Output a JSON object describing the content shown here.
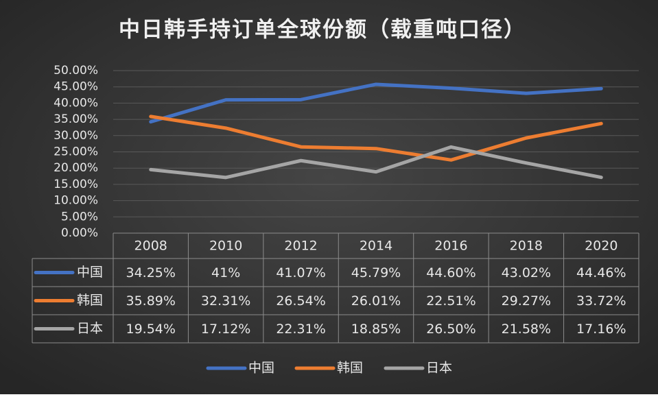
{
  "chart_data": {
    "type": "line",
    "title": "中日韩手持订单全球份额（载重吨口径）",
    "categories": [
      "2008",
      "2010",
      "2012",
      "2014",
      "2016",
      "2018",
      "2020"
    ],
    "ylim": [
      0,
      50
    ],
    "yticks": [
      {
        "value": 0,
        "label": "0.00%"
      },
      {
        "value": 5,
        "label": "5.00%"
      },
      {
        "value": 10,
        "label": "10.00%"
      },
      {
        "value": 15,
        "label": "15.00%"
      },
      {
        "value": 20,
        "label": "20.00%"
      },
      {
        "value": 25,
        "label": "25.00%"
      },
      {
        "value": 30,
        "label": "30.00%"
      },
      {
        "value": 35,
        "label": "35.00%"
      },
      {
        "value": 40,
        "label": "40.00%"
      },
      {
        "value": 45,
        "label": "45.00%"
      },
      {
        "value": 50,
        "label": "50.00%"
      }
    ],
    "grid": true,
    "legend": "bottom",
    "series": [
      {
        "name": "中国",
        "color": "#4472c4",
        "values": [
          34.25,
          41,
          41.07,
          45.79,
          44.6,
          43.02,
          44.46
        ],
        "value_labels": [
          "34.25%",
          "41%",
          "41.07%",
          "45.79%",
          "44.60%",
          "43.02%",
          "44.46%"
        ]
      },
      {
        "name": "韩国",
        "color": "#ed7d31",
        "values": [
          35.89,
          32.31,
          26.54,
          26.01,
          22.51,
          29.27,
          33.72
        ],
        "value_labels": [
          "35.89%",
          "32.31%",
          "26.54%",
          "26.01%",
          "22.51%",
          "29.27%",
          "33.72%"
        ]
      },
      {
        "name": "日本",
        "color": "#a5a5a5",
        "values": [
          19.54,
          17.12,
          22.31,
          18.85,
          26.5,
          21.58,
          17.16
        ],
        "value_labels": [
          "19.54%",
          "17.12%",
          "22.31%",
          "18.85%",
          "26.50%",
          "21.58%",
          "17.16%"
        ]
      }
    ]
  }
}
